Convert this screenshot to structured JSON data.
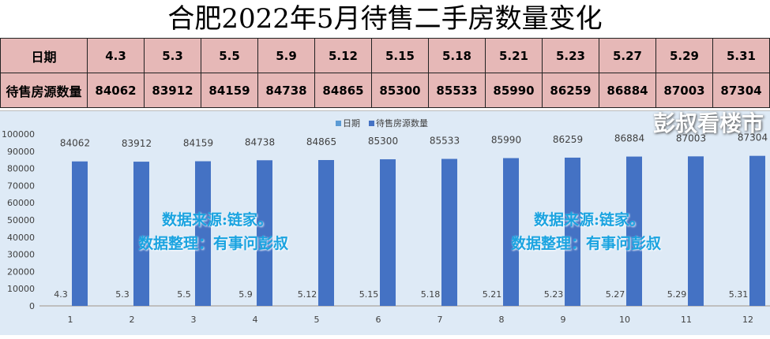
{
  "title": "合肥2022年5月待售二手房数量变化",
  "table": {
    "row1_header": "日期",
    "row2_header": "待售房源数量",
    "dates": [
      "4.3",
      "5.3",
      "5.5",
      "5.9",
      "5.12",
      "5.15",
      "5.18",
      "5.21",
      "5.23",
      "5.27",
      "5.29",
      "5.31"
    ],
    "counts": [
      "84062",
      "83912",
      "84159",
      "84738",
      "84865",
      "85300",
      "85533",
      "85990",
      "86259",
      "86884",
      "87003",
      "87304"
    ]
  },
  "chart_data": {
    "type": "bar",
    "categories": [
      "1",
      "2",
      "3",
      "4",
      "5",
      "6",
      "7",
      "8",
      "9",
      "10",
      "11",
      "12"
    ],
    "series": [
      {
        "name": "日期",
        "values": [
          4.3,
          5.3,
          5.5,
          5.9,
          5.12,
          5.15,
          5.18,
          5.21,
          5.23,
          5.27,
          5.29,
          5.31
        ],
        "labels": [
          "4.3",
          "5.3",
          "5.5",
          "5.9",
          "5.12",
          "5.15",
          "5.18",
          "5.21",
          "5.23",
          "5.27",
          "5.29",
          "5.31"
        ],
        "color": "#5B9BD5"
      },
      {
        "name": "待售房源数量",
        "values": [
          84062,
          83912,
          84159,
          84738,
          84865,
          85300,
          85533,
          85990,
          86259,
          86884,
          87003,
          87304
        ],
        "color": "#4472C4"
      }
    ],
    "ylim": [
      0,
      100000
    ],
    "yticks": [
      0,
      10000,
      20000,
      30000,
      40000,
      50000,
      60000,
      70000,
      80000,
      90000,
      100000
    ],
    "legend": "top",
    "grid": false
  },
  "watermark": {
    "line1": "数据来源:链家。",
    "line2": "数据整理：有事问彭叔",
    "brand": "彭叔看楼市"
  }
}
